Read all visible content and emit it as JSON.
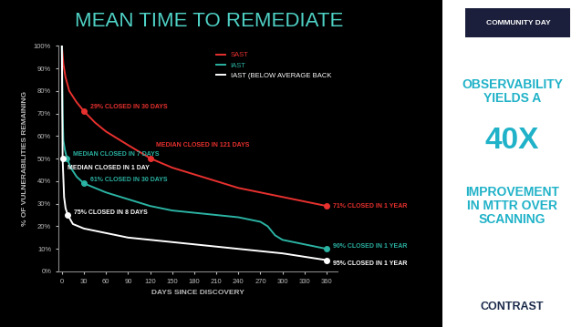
{
  "chart_data": {
    "type": "line",
    "title": "MEAN TIME TO REMEDIATE",
    "x_label": "DAYS SINCE DISCOVERY",
    "y_label": "% OF VULNERABILITIES REMAINING",
    "xlim": [
      -5,
      375
    ],
    "xticks": [
      0,
      30,
      60,
      90,
      120,
      150,
      180,
      210,
      240,
      270,
      300,
      330,
      360
    ],
    "ylim": [
      0,
      100
    ],
    "yticks": [
      {
        "value": 0,
        "label": "0%"
      },
      {
        "value": 10,
        "label": "10%"
      },
      {
        "value": 20,
        "label": "20%"
      },
      {
        "value": 30,
        "label": "30%"
      },
      {
        "value": 40,
        "label": "40%"
      },
      {
        "value": 50,
        "label": "50%"
      },
      {
        "value": 60,
        "label": "60%"
      },
      {
        "value": 70,
        "label": "70%"
      },
      {
        "value": 80,
        "label": "80%"
      },
      {
        "value": 90,
        "label": "90%"
      },
      {
        "value": 100,
        "label": "100%"
      }
    ],
    "grid": false,
    "legend": "upper right",
    "series": [
      {
        "name": "SAST",
        "color": "#e8312f",
        "x": [
          0,
          2,
          5,
          10,
          20,
          30,
          45,
          60,
          90,
          121,
          150,
          180,
          210,
          240,
          270,
          300,
          330,
          360
        ],
        "values": [
          100,
          92,
          86,
          80,
          75,
          71,
          66,
          62,
          56,
          50,
          46,
          43,
          40,
          37,
          35,
          33,
          31,
          29
        ]
      },
      {
        "name": "IAST",
        "color": "#2bb3a3",
        "x": [
          0,
          1,
          2,
          4,
          7,
          12,
          20,
          30,
          45,
          60,
          90,
          120,
          150,
          180,
          210,
          240,
          270,
          280,
          290,
          300,
          330,
          360
        ],
        "values": [
          100,
          70,
          58,
          54,
          50,
          46,
          42,
          39,
          37,
          35,
          32,
          29,
          27,
          26,
          25,
          24,
          22,
          20,
          16,
          14,
          12,
          10
        ]
      },
      {
        "name": "IAST (BELOW AVERAGE BACK",
        "color": "#ffffff",
        "x": [
          0,
          1,
          3,
          5,
          8,
          15,
          30,
          60,
          90,
          120,
          180,
          240,
          300,
          360
        ],
        "values": [
          100,
          50,
          33,
          28,
          25,
          21,
          19,
          17,
          15,
          14,
          12,
          10,
          8,
          5
        ]
      }
    ],
    "annotations": [
      {
        "text": "29% CLOSED IN 30 DAYS",
        "x": 30,
        "y": 71,
        "color": "#e8312f"
      },
      {
        "text": "MEDIAN CLOSED IN 121 DAYS",
        "x": 121,
        "y": 50,
        "color": "#e8312f"
      },
      {
        "text": "71% CLOSED IN 1 YEAR",
        "x": 360,
        "y": 29,
        "color": "#e8312f"
      },
      {
        "text": "MEDIAN CLOSED IN 7 DAYS",
        "x": 7,
        "y": 50,
        "color": "#2bb3a3"
      },
      {
        "text": "61% CLOSED IN 30 DAYS",
        "x": 30,
        "y": 39,
        "color": "#2bb3a3"
      },
      {
        "text": "90% CLOSED IN 1 YEAR",
        "x": 360,
        "y": 10,
        "color": "#2bb3a3"
      },
      {
        "text": "MEDIAN CLOSED IN 1 DAY",
        "x": 1,
        "y": 50,
        "color": "#ffffff"
      },
      {
        "text": "75% CLOSED IN 8 DAYS",
        "x": 8,
        "y": 25,
        "color": "#ffffff"
      },
      {
        "text": "95% CLOSED IN 1 YEAR",
        "x": 360,
        "y": 5,
        "color": "#ffffff"
      }
    ],
    "side_text": [
      "OBSERVABILITY YIELDS A",
      "40X",
      "IMPROVEMENT IN MTTR OVER SCANNING"
    ],
    "badge": "COMMUNITY DAY",
    "logo": "CONTRAST"
  }
}
